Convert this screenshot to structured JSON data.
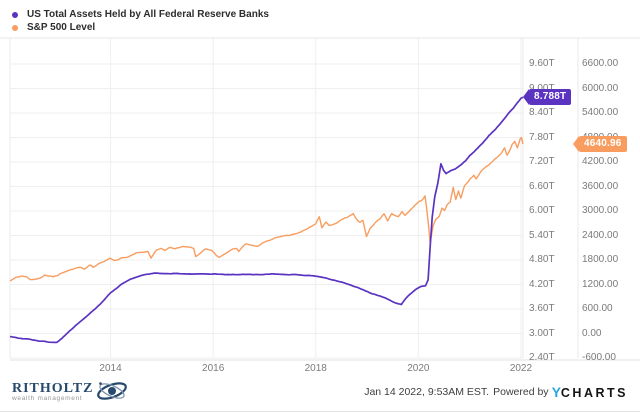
{
  "chart_data": {
    "type": "line",
    "title": "",
    "grid": true,
    "legend_position": "top-left",
    "x_axis": {
      "range": [
        2012.04,
        2022.04
      ],
      "tick_values": [
        2014,
        2016,
        2018,
        2020,
        2022
      ],
      "tick_labels": [
        "2014",
        "2016",
        "2018",
        "2020",
        "2022"
      ]
    },
    "y_axis_assets": {
      "side": "right-inner",
      "unit": "trillions USD",
      "range": [
        2.4,
        9.6
      ],
      "tick_values": [
        9.6,
        9.0,
        8.4,
        7.8,
        7.2,
        6.6,
        6.0,
        5.4,
        4.8,
        4.2,
        3.6,
        3.0,
        2.4
      ],
      "tick_labels": [
        "9.60T",
        "9.00T",
        "8.40T",
        "7.80T",
        "7.20T",
        "6.60T",
        "6.00T",
        "5.40T",
        "4.80T",
        "4.20T",
        "3.60T",
        "3.00T",
        "2.40T"
      ]
    },
    "y_axis_sp500": {
      "side": "right-outer",
      "unit": "index level",
      "range": [
        -600,
        6600
      ],
      "tick_values": [
        6600,
        6000,
        5400,
        4800,
        4200,
        3600,
        3000,
        2400,
        1800,
        1200,
        600,
        0,
        -600
      ],
      "tick_labels": [
        "6600.00",
        "6000.00",
        "5400.00",
        "4800.00",
        "4200.00",
        "3600.00",
        "3000.00",
        "2400.00",
        "1800.00",
        "1200.00",
        "600.00",
        "0.00",
        "-600.00"
      ]
    },
    "series": [
      {
        "name": "S&P 500 Level",
        "axis": "sp500",
        "color": "#f89d5f",
        "current_label": "4640.96",
        "current_value": 4640.96,
        "jitter": 26,
        "points": [
          [
            2012.04,
            1289
          ],
          [
            2012.15,
            1362
          ],
          [
            2012.27,
            1408
          ],
          [
            2012.36,
            1385
          ],
          [
            2012.44,
            1308
          ],
          [
            2012.52,
            1335
          ],
          [
            2012.62,
            1362
          ],
          [
            2012.72,
            1438
          ],
          [
            2012.79,
            1408
          ],
          [
            2012.88,
            1382
          ],
          [
            2012.97,
            1426
          ],
          [
            2013.08,
            1495
          ],
          [
            2013.2,
            1552
          ],
          [
            2013.33,
            1593
          ],
          [
            2013.41,
            1633
          ],
          [
            2013.49,
            1575
          ],
          [
            2013.6,
            1685
          ],
          [
            2013.66,
            1632
          ],
          [
            2013.76,
            1702
          ],
          [
            2013.87,
            1770
          ],
          [
            2013.99,
            1845
          ],
          [
            2014.09,
            1782
          ],
          [
            2014.22,
            1862
          ],
          [
            2014.36,
            1885
          ],
          [
            2014.5,
            1962
          ],
          [
            2014.62,
            1988
          ],
          [
            2014.73,
            2010
          ],
          [
            2014.79,
            1865
          ],
          [
            2014.9,
            2062
          ],
          [
            2014.98,
            2082
          ],
          [
            2015.06,
            2022
          ],
          [
            2015.16,
            2108
          ],
          [
            2015.26,
            2062
          ],
          [
            2015.39,
            2125
          ],
          [
            2015.54,
            2102
          ],
          [
            2015.62,
            2084
          ],
          [
            2015.66,
            1880
          ],
          [
            2015.73,
            1942
          ],
          [
            2015.85,
            2078
          ],
          [
            2015.96,
            2048
          ],
          [
            2016.06,
            1918
          ],
          [
            2016.12,
            1862
          ],
          [
            2016.22,
            1935
          ],
          [
            2016.36,
            2062
          ],
          [
            2016.46,
            2098
          ],
          [
            2016.5,
            2012
          ],
          [
            2016.56,
            2105
          ],
          [
            2016.63,
            2172
          ],
          [
            2016.76,
            2158
          ],
          [
            2016.86,
            2132
          ],
          [
            2016.97,
            2242
          ],
          [
            2017.1,
            2292
          ],
          [
            2017.25,
            2362
          ],
          [
            2017.4,
            2402
          ],
          [
            2017.56,
            2442
          ],
          [
            2017.72,
            2488
          ],
          [
            2017.86,
            2588
          ],
          [
            2018.0,
            2708
          ],
          [
            2018.07,
            2868
          ],
          [
            2018.12,
            2588
          ],
          [
            2018.2,
            2722
          ],
          [
            2018.26,
            2642
          ],
          [
            2018.36,
            2688
          ],
          [
            2018.5,
            2782
          ],
          [
            2018.63,
            2852
          ],
          [
            2018.73,
            2928
          ],
          [
            2018.8,
            2782
          ],
          [
            2018.86,
            2706
          ],
          [
            2018.92,
            2752
          ],
          [
            2018.99,
            2362
          ],
          [
            2019.06,
            2578
          ],
          [
            2019.16,
            2725
          ],
          [
            2019.26,
            2822
          ],
          [
            2019.33,
            2938
          ],
          [
            2019.4,
            2762
          ],
          [
            2019.48,
            2952
          ],
          [
            2019.56,
            2902
          ],
          [
            2019.61,
            2868
          ],
          [
            2019.68,
            2982
          ],
          [
            2019.74,
            2892
          ],
          [
            2019.82,
            2992
          ],
          [
            2019.91,
            3108
          ],
          [
            2020.0,
            3232
          ],
          [
            2020.06,
            3268
          ],
          [
            2020.1,
            3328
          ],
          [
            2020.13,
            3386
          ],
          [
            2020.16,
            3092
          ],
          [
            2020.2,
            2652
          ],
          [
            2020.23,
            2250
          ],
          [
            2020.29,
            2652
          ],
          [
            2020.34,
            2798
          ],
          [
            2020.41,
            2872
          ],
          [
            2020.46,
            3062
          ],
          [
            2020.51,
            3012
          ],
          [
            2020.56,
            3158
          ],
          [
            2020.62,
            3228
          ],
          [
            2020.68,
            3572
          ],
          [
            2020.73,
            3272
          ],
          [
            2020.78,
            3482
          ],
          [
            2020.83,
            3302
          ],
          [
            2020.9,
            3602
          ],
          [
            2020.97,
            3712
          ],
          [
            2021.0,
            3762
          ],
          [
            2021.08,
            3872
          ],
          [
            2021.13,
            3792
          ],
          [
            2021.21,
            3942
          ],
          [
            2021.31,
            4082
          ],
          [
            2021.41,
            4182
          ],
          [
            2021.51,
            4302
          ],
          [
            2021.61,
            4402
          ],
          [
            2021.68,
            4537
          ],
          [
            2021.73,
            4352
          ],
          [
            2021.78,
            4472
          ],
          [
            2021.83,
            4622
          ],
          [
            2021.88,
            4702
          ],
          [
            2021.93,
            4542
          ],
          [
            2021.99,
            4782
          ],
          [
            2022.01,
            4797
          ],
          [
            2022.04,
            4640.96
          ]
        ]
      },
      {
        "name": "US Total Assets Held by All Federal Reserve Banks",
        "axis": "assets",
        "color": "#5b33c1",
        "current_label": "8.788T",
        "current_value": 8.788,
        "jitter": 0.012,
        "points": [
          [
            2012.04,
            2.93
          ],
          [
            2012.2,
            2.885
          ],
          [
            2012.42,
            2.86
          ],
          [
            2012.6,
            2.82
          ],
          [
            2012.8,
            2.79
          ],
          [
            2012.95,
            2.78
          ],
          [
            2013.05,
            2.88
          ],
          [
            2013.2,
            3.06
          ],
          [
            2013.4,
            3.28
          ],
          [
            2013.6,
            3.5
          ],
          [
            2013.8,
            3.72
          ],
          [
            2014.0,
            4.0
          ],
          [
            2014.2,
            4.2
          ],
          [
            2014.4,
            4.33
          ],
          [
            2014.6,
            4.42
          ],
          [
            2014.85,
            4.47
          ],
          [
            2015.3,
            4.47
          ],
          [
            2015.7,
            4.46
          ],
          [
            2016.2,
            4.45
          ],
          [
            2016.7,
            4.44
          ],
          [
            2017.2,
            4.45
          ],
          [
            2017.6,
            4.44
          ],
          [
            2017.9,
            4.42
          ],
          [
            2018.2,
            4.36
          ],
          [
            2018.5,
            4.26
          ],
          [
            2018.8,
            4.14
          ],
          [
            2019.1,
            3.98
          ],
          [
            2019.35,
            3.88
          ],
          [
            2019.55,
            3.76
          ],
          [
            2019.67,
            3.72
          ],
          [
            2019.75,
            3.86
          ],
          [
            2019.85,
            3.98
          ],
          [
            2019.95,
            4.09
          ],
          [
            2020.05,
            4.15
          ],
          [
            2020.14,
            4.17
          ],
          [
            2020.19,
            4.31
          ],
          [
            2020.23,
            5.1
          ],
          [
            2020.27,
            5.85
          ],
          [
            2020.32,
            6.35
          ],
          [
            2020.38,
            6.68
          ],
          [
            2020.44,
            7.16
          ],
          [
            2020.49,
            7.0
          ],
          [
            2020.54,
            6.92
          ],
          [
            2020.62,
            6.98
          ],
          [
            2020.72,
            7.03
          ],
          [
            2020.82,
            7.12
          ],
          [
            2020.92,
            7.23
          ],
          [
            2021.0,
            7.36
          ],
          [
            2021.12,
            7.5
          ],
          [
            2021.25,
            7.66
          ],
          [
            2021.38,
            7.85
          ],
          [
            2021.5,
            8.0
          ],
          [
            2021.62,
            8.18
          ],
          [
            2021.75,
            8.38
          ],
          [
            2021.85,
            8.52
          ],
          [
            2021.95,
            8.68
          ],
          [
            2022.0,
            8.757
          ],
          [
            2022.04,
            8.788
          ]
        ]
      }
    ]
  },
  "legend": {
    "items": [
      {
        "label": "US Total Assets Held by All Federal Reserve Banks",
        "color": "#5b33c1"
      },
      {
        "label": "S&P 500 Level",
        "color": "#f89d5f"
      }
    ]
  },
  "footer": {
    "timestamp": "Jan 14 2022, 9:53AM EST.",
    "powered_by": "Powered by",
    "brand_prefix": "Y",
    "brand_suffix": "CHARTS"
  },
  "logo": {
    "name": "RITHOLTZ",
    "tagline": "wealth management"
  },
  "colors": {
    "assets_series": "#5b33c1",
    "sp500_series": "#f89d5f",
    "grid": "#efefef",
    "border": "#e7e7e7",
    "axis_text": "#7b7b7b",
    "ycharts_blue": "#2aa7e0",
    "ritholtz_navy": "#27496d"
  }
}
